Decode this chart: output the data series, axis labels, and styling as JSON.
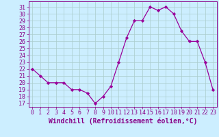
{
  "x": [
    0,
    1,
    2,
    3,
    4,
    5,
    6,
    7,
    8,
    9,
    10,
    11,
    12,
    13,
    14,
    15,
    16,
    17,
    18,
    19,
    20,
    21,
    22,
    23
  ],
  "y": [
    22,
    21,
    20,
    20,
    20,
    19,
    19,
    18.5,
    17,
    18,
    19.5,
    23,
    26.5,
    29,
    29,
    31,
    30.5,
    31,
    30,
    27.5,
    26,
    26,
    23,
    19
  ],
  "line_color": "#990099",
  "marker": "D",
  "marker_size": 2.2,
  "bg_color": "#cceeff",
  "grid_color": "#aacccc",
  "xlabel": "Windchill (Refroidissement éolien,°C)",
  "xlabel_fontsize": 7,
  "ylabel_ticks": [
    17,
    18,
    19,
    20,
    21,
    22,
    23,
    24,
    25,
    26,
    27,
    28,
    29,
    30,
    31
  ],
  "xlim": [
    -0.5,
    23.5
  ],
  "ylim": [
    16.5,
    31.8
  ],
  "xtick_labels": [
    "0",
    "1",
    "2",
    "3",
    "4",
    "5",
    "6",
    "7",
    "8",
    "9",
    "10",
    "11",
    "12",
    "13",
    "14",
    "15",
    "16",
    "17",
    "18",
    "19",
    "20",
    "21",
    "22",
    "23"
  ],
  "tick_fontsize": 6,
  "axis_color": "#880088",
  "lw": 0.9
}
